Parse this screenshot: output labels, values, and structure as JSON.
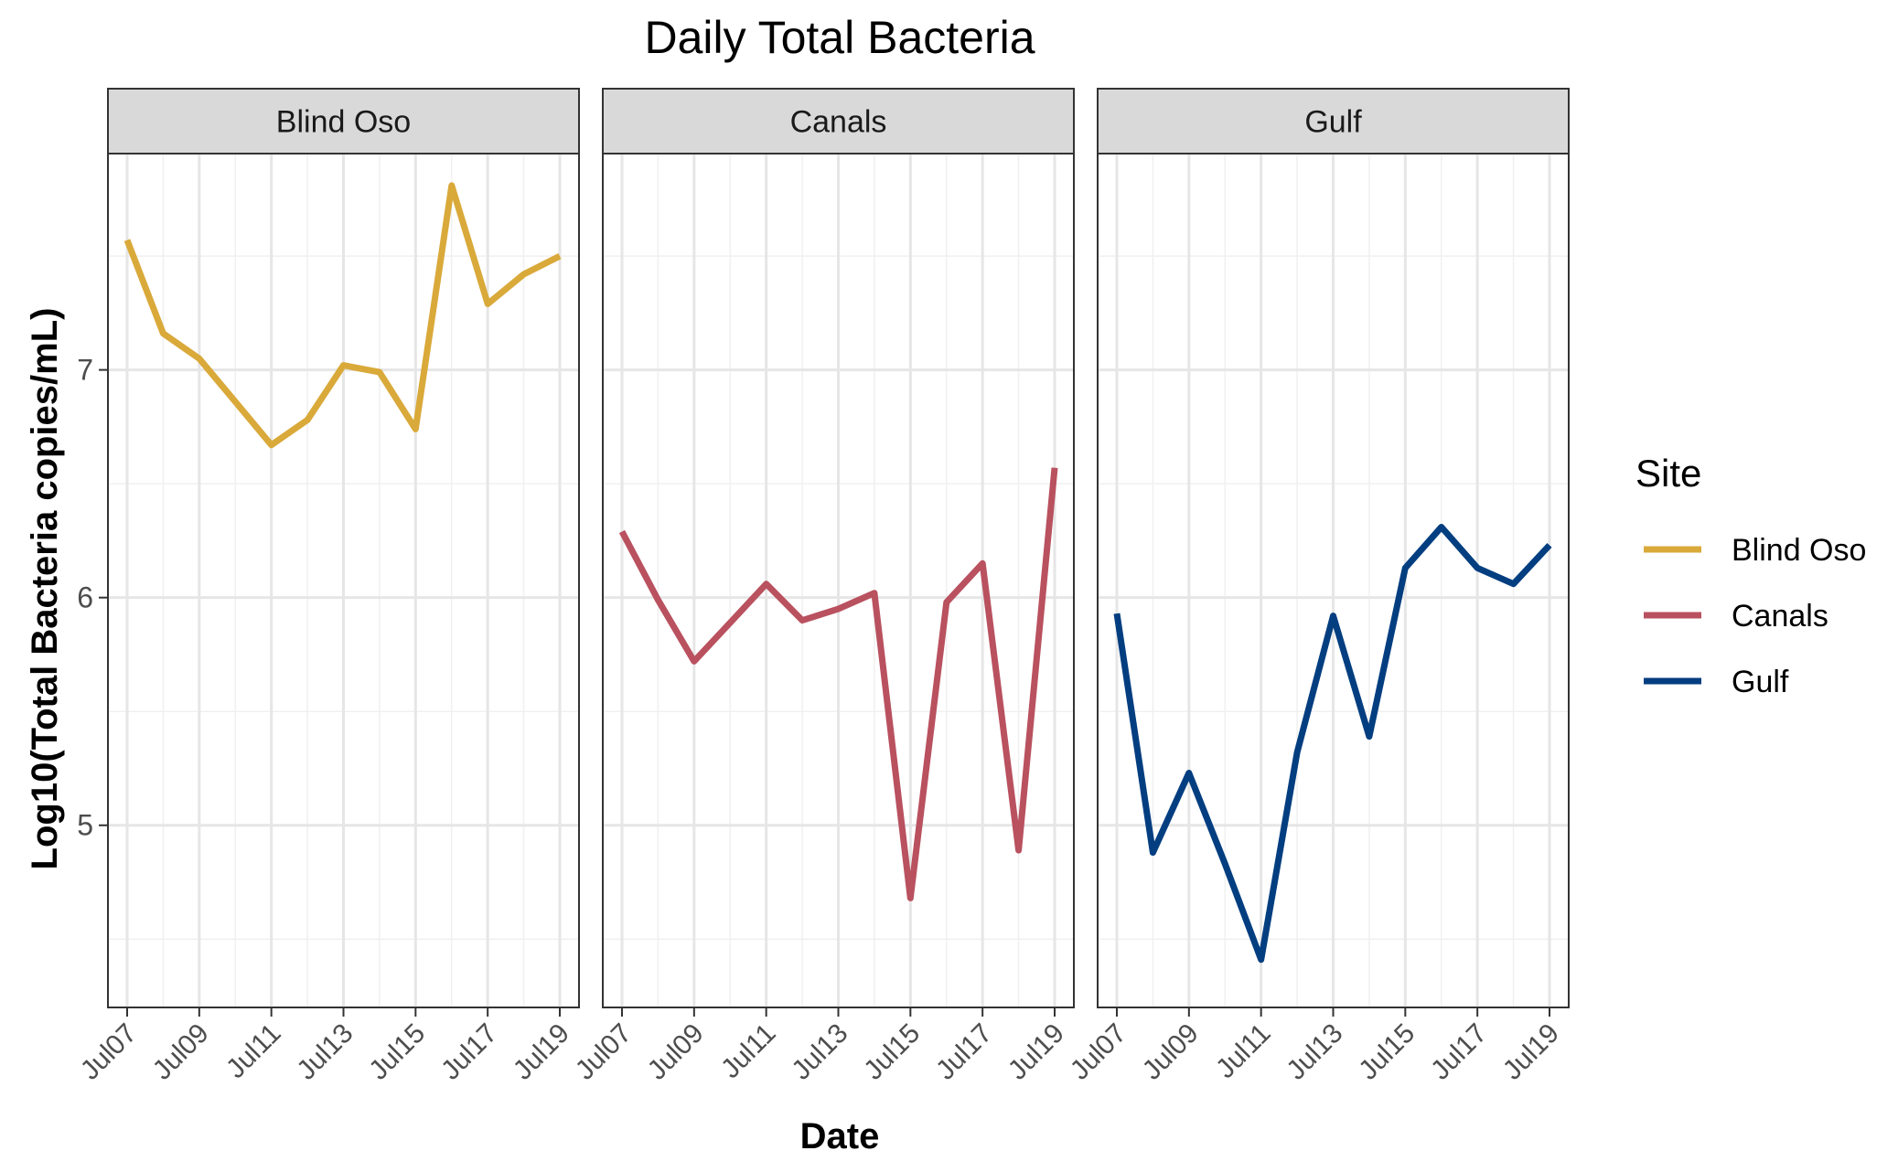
{
  "chart_data": {
    "type": "line",
    "title": "Daily Total Bacteria",
    "xlabel": "Date",
    "ylabel": "Log10(Total Bacteria copies/mL)",
    "ylim": [
      4.2,
      7.95
    ],
    "y_ticks": [
      5,
      6,
      7
    ],
    "x": [
      "Jul07",
      "Jul08",
      "Jul09",
      "Jul10",
      "Jul11",
      "Jul12",
      "Jul13",
      "Jul14",
      "Jul15",
      "Jul16",
      "Jul17",
      "Jul18",
      "Jul19"
    ],
    "x_tick_labels": [
      "Jul07",
      "Jul09",
      "Jul11",
      "Jul13",
      "Jul15",
      "Jul17",
      "Jul19"
    ],
    "grid": true,
    "facets": [
      "Blind Oso",
      "Canals",
      "Gulf"
    ],
    "legend": {
      "title": "Site",
      "position": "right"
    },
    "series": [
      {
        "name": "Blind Oso",
        "color": "#D9A93A",
        "values": [
          7.57,
          7.16,
          7.05,
          6.86,
          6.67,
          6.78,
          7.02,
          6.99,
          6.74,
          7.81,
          7.29,
          7.42,
          7.5
        ]
      },
      {
        "name": "Canals",
        "color": "#B9515F",
        "values": [
          6.29,
          5.99,
          5.72,
          5.89,
          6.06,
          5.9,
          5.95,
          6.02,
          4.68,
          5.98,
          6.15,
          4.89,
          6.57
        ]
      },
      {
        "name": "Gulf",
        "color": "#033E80",
        "values": [
          5.93,
          4.88,
          5.23,
          4.83,
          4.41,
          5.32,
          5.92,
          5.39,
          6.13,
          6.31,
          6.13,
          6.06,
          6.23
        ]
      }
    ]
  }
}
